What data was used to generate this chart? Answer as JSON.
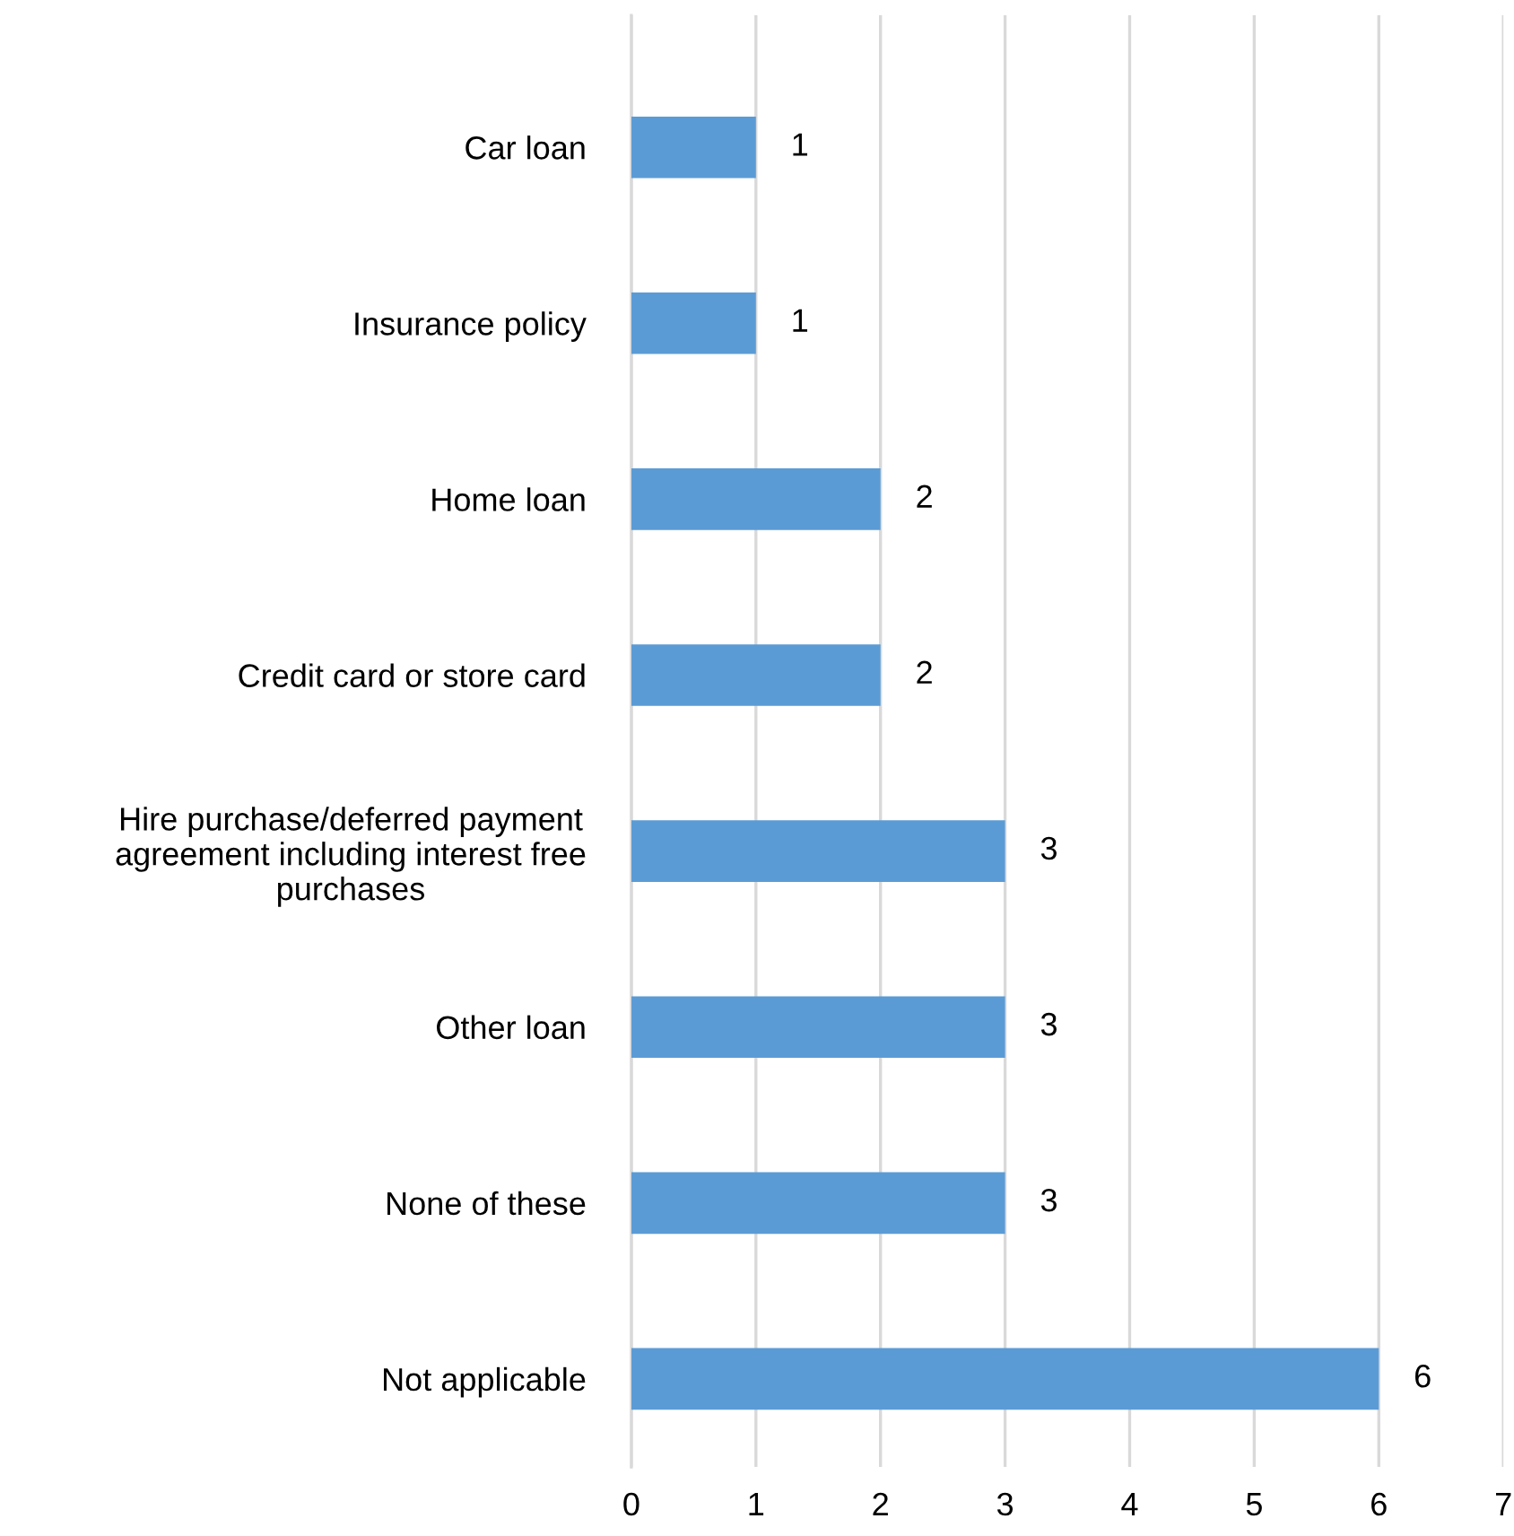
{
  "chart_data": {
    "type": "bar",
    "orientation": "horizontal",
    "categories": [
      "Car loan",
      "Insurance policy",
      "Home loan",
      "Credit card or store card",
      "Hire purchase/deferred payment\nagreement including interest free\npurchases",
      "Other loan",
      "None of these",
      "Not applicable"
    ],
    "values": [
      1,
      1,
      2,
      2,
      3,
      3,
      3,
      6
    ],
    "color": "#5b9bd5",
    "xlim": [
      0,
      7
    ],
    "xticks": [
      0,
      1,
      2,
      3,
      4,
      5,
      6,
      7
    ],
    "grid": "x",
    "data_labels": true
  }
}
